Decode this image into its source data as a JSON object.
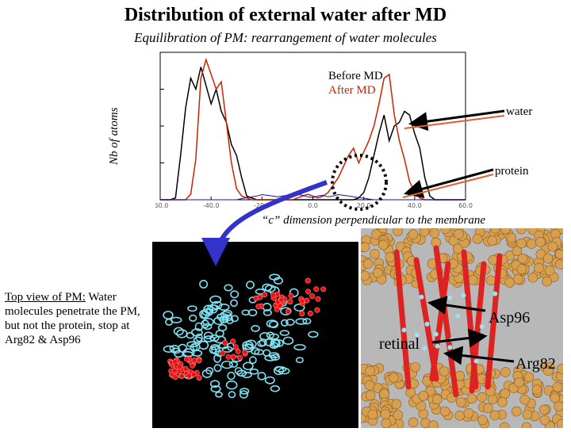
{
  "slide": {
    "title": "Distribution of external water after MD",
    "subtitle": "Equilibration of PM: rearrangement of water molecules"
  },
  "chart_data": {
    "type": "line",
    "ylabel": "Nb of atoms",
    "xlabel": "“c” dimension perpendicular to the membrane",
    "yticks": [
      "0.0",
      "100.0",
      "200.0",
      "300.0",
      "400.0"
    ],
    "xticks": [
      "-60.0",
      "-40.0",
      "-20.0",
      "0.0",
      "20.0",
      "40.0",
      "60.0"
    ],
    "xlim": [
      -60,
      60
    ],
    "ylim": [
      0,
      400
    ],
    "x": [
      -60,
      -58,
      -56,
      -54,
      -52,
      -50,
      -48,
      -46,
      -44,
      -42,
      -40,
      -38,
      -36,
      -34,
      -32,
      -30,
      -28,
      -26,
      -24,
      -22,
      -20,
      -18,
      -16,
      -14,
      -12,
      -10,
      -8,
      -6,
      -4,
      -2,
      0,
      2,
      4,
      6,
      8,
      10,
      12,
      14,
      16,
      18,
      20,
      22,
      24,
      26,
      28,
      30,
      32,
      34,
      36,
      38,
      40,
      42,
      44,
      46,
      48,
      50,
      52,
      54,
      56,
      58,
      60
    ],
    "series": [
      {
        "name": "Before MD",
        "color": "#000000",
        "values": [
          0,
          0,
          0,
          5,
          120,
          250,
          330,
          300,
          360,
          310,
          260,
          300,
          240,
          210,
          150,
          120,
          60,
          10,
          5,
          0,
          0,
          0,
          0,
          0,
          0,
          0,
          0,
          0,
          0,
          0,
          0,
          0,
          0,
          0,
          0,
          0,
          0,
          0,
          0,
          5,
          20,
          60,
          120,
          180,
          230,
          160,
          200,
          210,
          240,
          230,
          180,
          140,
          60,
          10,
          0,
          0,
          0,
          0,
          0,
          0,
          0
        ]
      },
      {
        "name": "After MD",
        "color": "#cc2200",
        "values": [
          0,
          0,
          0,
          0,
          0,
          0,
          15,
          110,
          330,
          380,
          340,
          300,
          320,
          210,
          100,
          30,
          10,
          5,
          0,
          0,
          0,
          0,
          0,
          0,
          0,
          0,
          0,
          5,
          10,
          15,
          10,
          5,
          10,
          20,
          40,
          60,
          90,
          120,
          140,
          100,
          130,
          160,
          200,
          260,
          330,
          340,
          230,
          160,
          110,
          50,
          20,
          5,
          0,
          0,
          0,
          0,
          0,
          0,
          0,
          0,
          0
        ]
      },
      {
        "name": "protein",
        "color": "#1010aa",
        "values": [
          0,
          0,
          0,
          0,
          0,
          0,
          0,
          0,
          0,
          0,
          0,
          0,
          0,
          0,
          0,
          0,
          3,
          6,
          8,
          10,
          14,
          12,
          10,
          8,
          10,
          12,
          10,
          14,
          12,
          8,
          6,
          10,
          12,
          8,
          10,
          14,
          12,
          10,
          8,
          6,
          4,
          2,
          0,
          0,
          0,
          0,
          0,
          0,
          0,
          0,
          0,
          0,
          0,
          0,
          0,
          0,
          0,
          0,
          0,
          0,
          0
        ]
      }
    ]
  },
  "annotations": {
    "water": "water",
    "protein": "protein",
    "asp96": "Asp96",
    "retinal": "retinal",
    "arg82": "Arg82"
  },
  "topview": {
    "heading": "Top view of PM:",
    "body": " Water molecules penetrate the PM, but not the protein, stop at Arg82 & Asp96"
  }
}
